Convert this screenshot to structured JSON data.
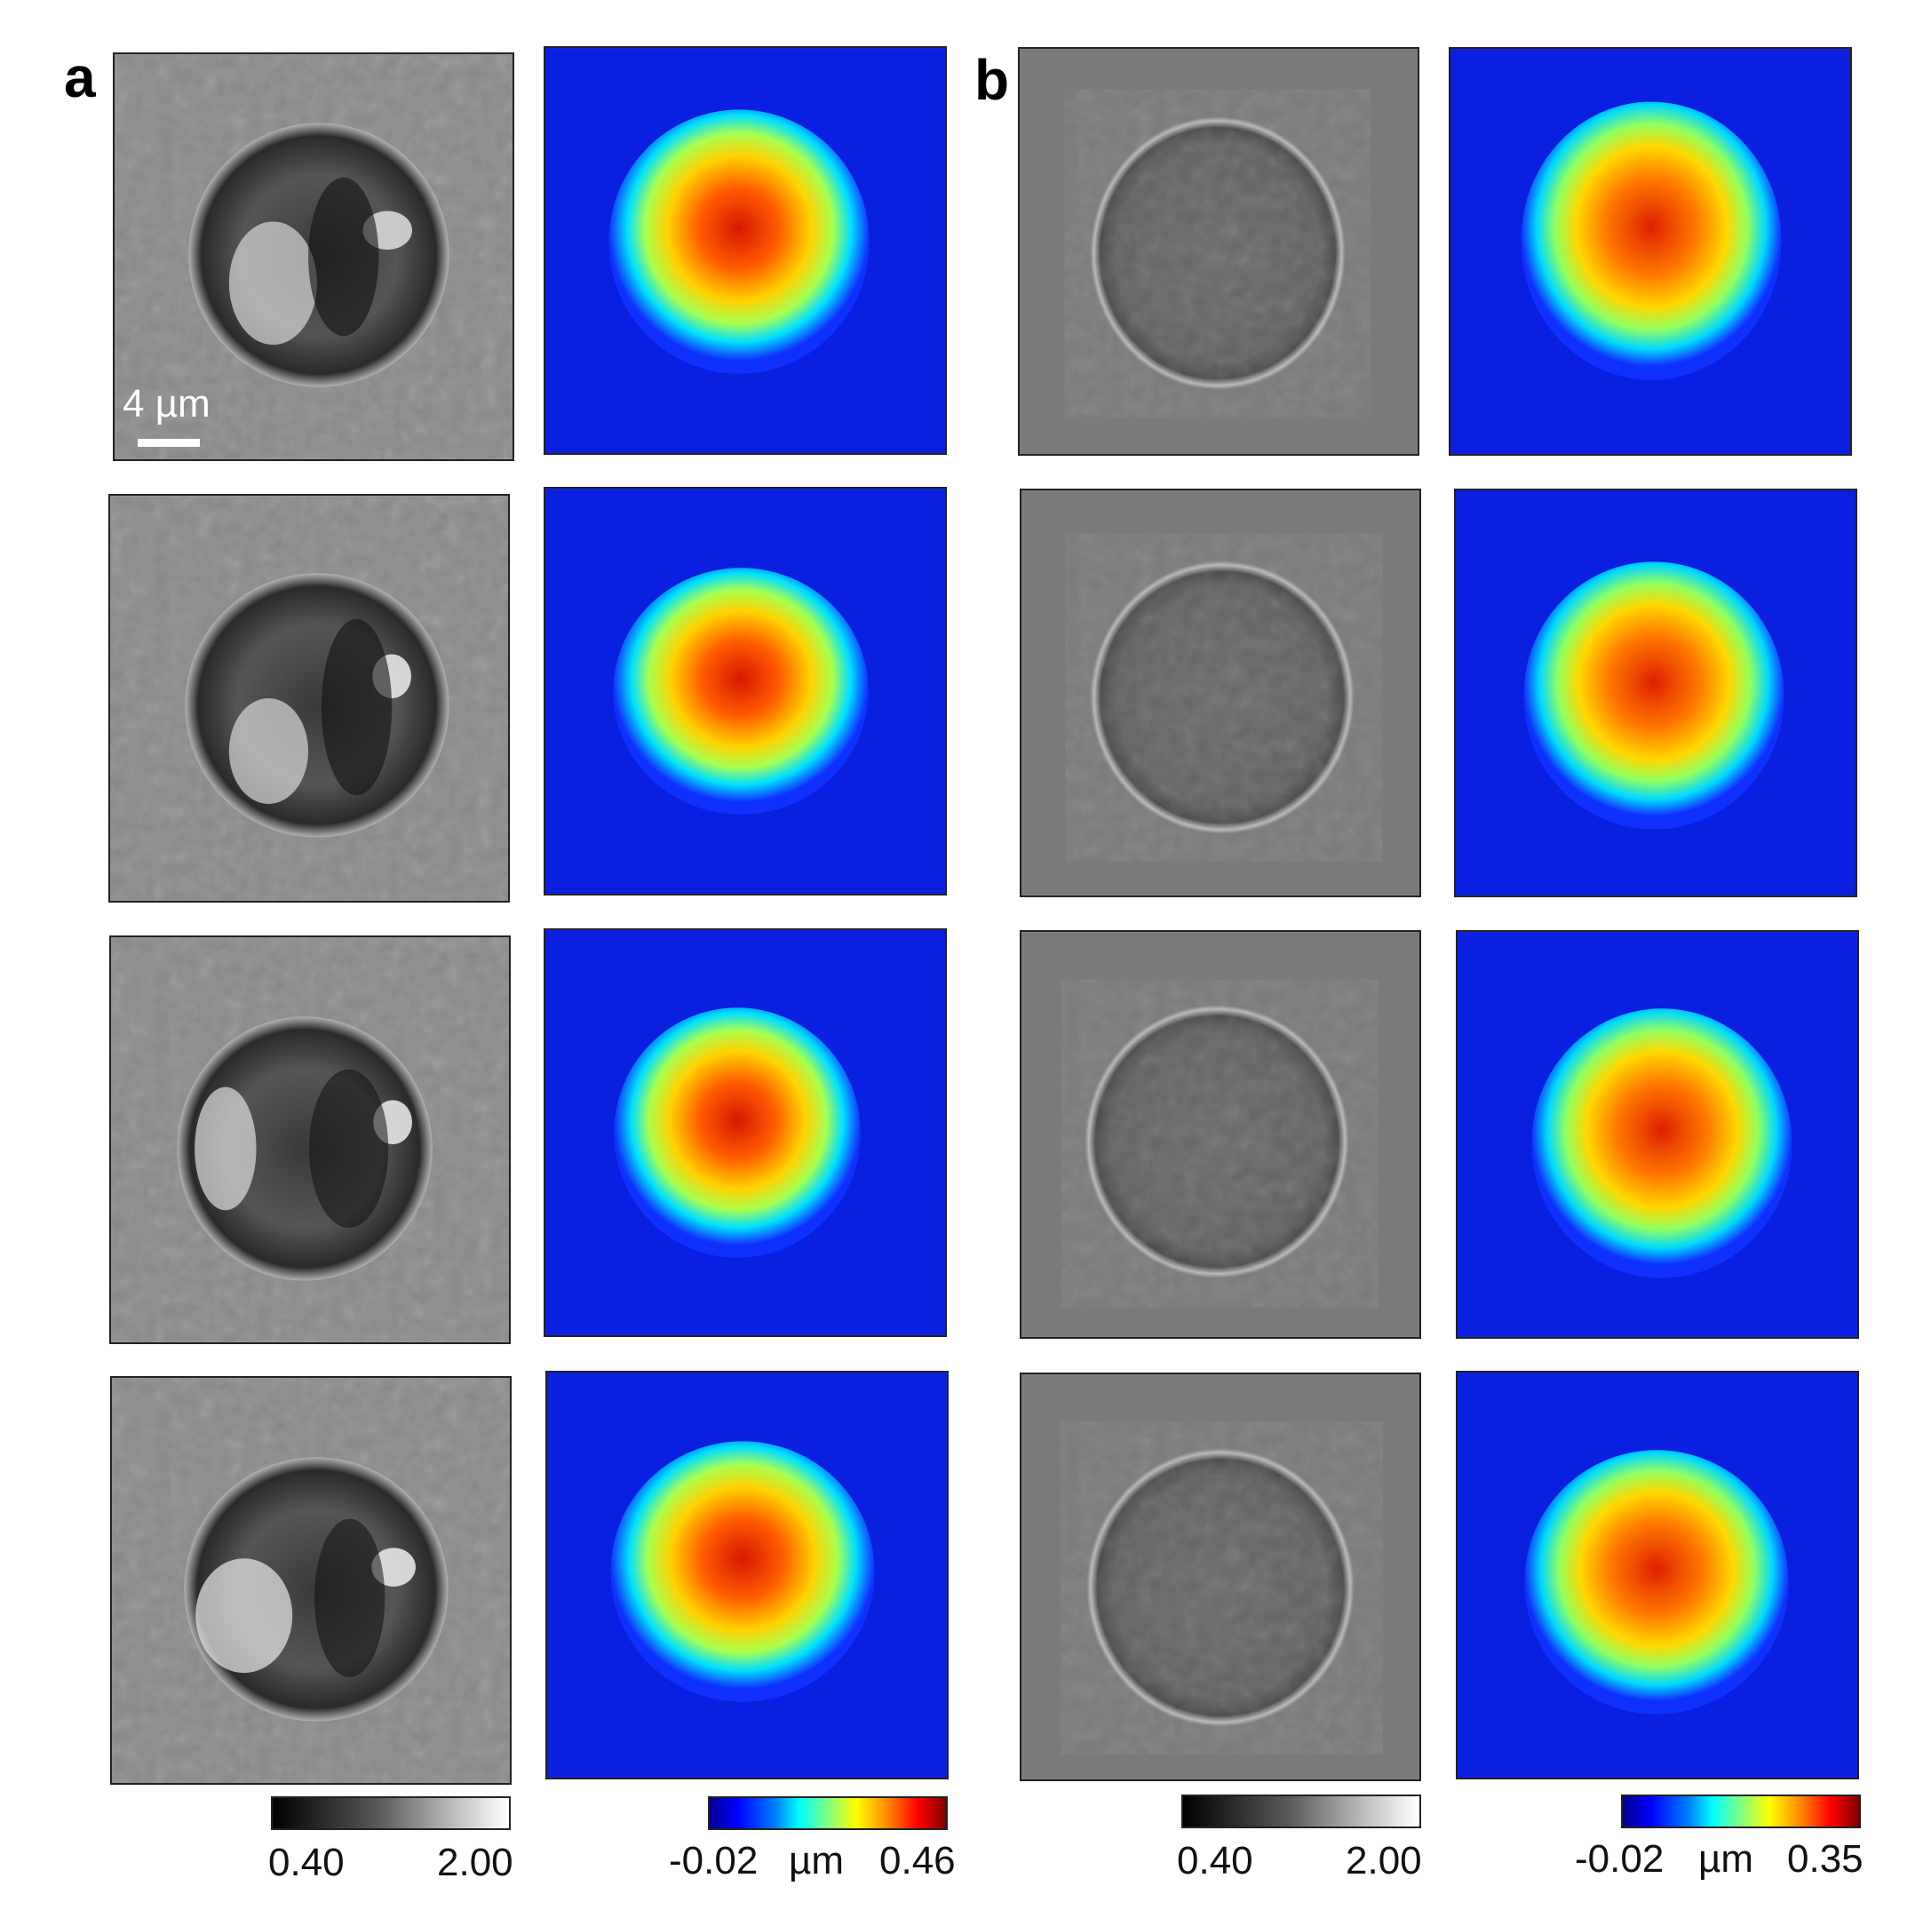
{
  "panels": {
    "a": {
      "label": "a"
    },
    "b": {
      "label": "b"
    }
  },
  "scale_bar": {
    "label": "4 µm"
  },
  "colorbars": {
    "a_gray": {
      "min": "0.40",
      "max": "2.00"
    },
    "a_height": {
      "min": "-0.02",
      "unit": "µm",
      "max": "0.46"
    },
    "b_gray": {
      "min": "0.40",
      "max": "2.00"
    },
    "b_height": {
      "min": "-0.02",
      "unit": "µm",
      "max": "0.35"
    }
  },
  "colors": {
    "colormap": "jet",
    "background_blue": "#0a1fe0",
    "gray_bg_a": "#8a8a8a",
    "gray_bg_b": "#7a7a7a"
  }
}
